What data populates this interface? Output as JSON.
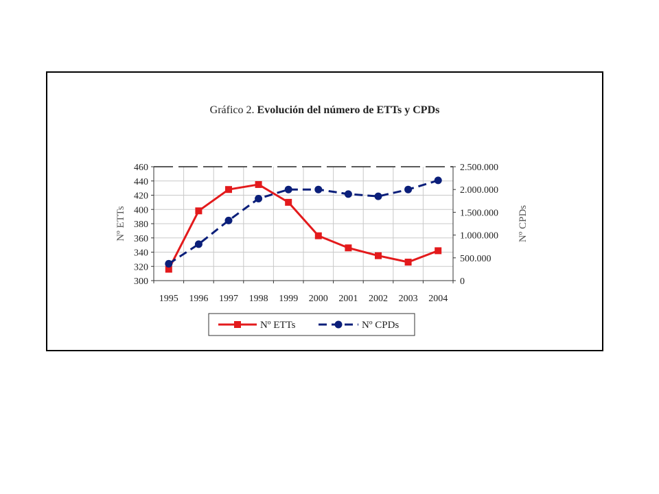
{
  "chart_data": {
    "type": "line",
    "title_prefix": "Gráfico 2.",
    "title_main": "Evolución del número de ETTs y CPDs",
    "categories": [
      "1995",
      "1996",
      "1997",
      "1998",
      "1999",
      "2000",
      "2001",
      "2002",
      "2003",
      "2004"
    ],
    "y_left": {
      "label": "Nº ETTs",
      "range": [
        300,
        460
      ],
      "ticks": [
        "300",
        "320",
        "340",
        "360",
        "380",
        "400",
        "420",
        "440",
        "460"
      ]
    },
    "y_right": {
      "label": "Nº CPDs",
      "range": [
        0,
        2500000
      ],
      "ticks": [
        "0",
        "500.000",
        "1.000.000",
        "1.500.000",
        "2.000.000",
        "2.500.000"
      ]
    },
    "series": [
      {
        "name": "Nº ETTs",
        "axis": "left",
        "color": "#e31a1c",
        "marker": "square",
        "line": "solid",
        "values": [
          316,
          398,
          428,
          435,
          410,
          363,
          346,
          335,
          326,
          342
        ]
      },
      {
        "name": "Nº CPDs",
        "axis": "right",
        "color": "#0b1f7a",
        "marker": "circle",
        "line": "dashed",
        "values": [
          370000,
          800000,
          1320000,
          1800000,
          2000000,
          2000000,
          1900000,
          1850000,
          2000000,
          2200000
        ]
      }
    ],
    "grid": true,
    "legend_position": "bottom"
  }
}
